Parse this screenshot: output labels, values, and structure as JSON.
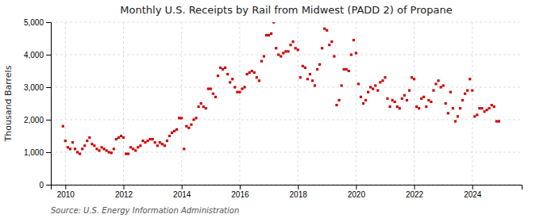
{
  "chart_data": {
    "type": "scatter",
    "title": "Monthly U.S. Receipts by Rail from Midwest (PADD 2) of Propane",
    "ylabel": "Thousand Barrels",
    "source": "Source: U.S. Energy Information Administration",
    "color": "#cc0000",
    "marker": "square",
    "grid": true,
    "xlim": [
      2009.5,
      2025.7
    ],
    "xticks": [
      2010,
      2012,
      2014,
      2016,
      2018,
      2020,
      2022,
      2024
    ],
    "ylim": [
      0,
      5000
    ],
    "yticks": [
      0,
      {
        "value": 1000,
        "label": "1,000"
      },
      {
        "value": 2000,
        "label": "2,000"
      },
      {
        "value": 3000,
        "label": "3,000"
      },
      {
        "value": 4000,
        "label": "4,000"
      },
      {
        "value": 5000,
        "label": "5,000"
      }
    ],
    "x": [
      2009.917,
      2010.0,
      2010.083,
      2010.167,
      2010.25,
      2010.333,
      2010.417,
      2010.5,
      2010.583,
      2010.667,
      2010.75,
      2010.833,
      2010.917,
      2011.0,
      2011.083,
      2011.167,
      2011.25,
      2011.333,
      2011.417,
      2011.5,
      2011.583,
      2011.667,
      2011.75,
      2011.833,
      2011.917,
      2012.0,
      2012.083,
      2012.167,
      2012.25,
      2012.333,
      2012.417,
      2012.5,
      2012.583,
      2012.667,
      2012.75,
      2012.833,
      2012.917,
      2013.0,
      2013.083,
      2013.167,
      2013.25,
      2013.333,
      2013.417,
      2013.5,
      2013.583,
      2013.667,
      2013.75,
      2013.833,
      2013.917,
      2014.0,
      2014.083,
      2014.167,
      2014.25,
      2014.333,
      2014.417,
      2014.5,
      2014.583,
      2014.667,
      2014.75,
      2014.833,
      2014.917,
      2015.0,
      2015.083,
      2015.167,
      2015.25,
      2015.333,
      2015.417,
      2015.5,
      2015.583,
      2015.667,
      2015.75,
      2015.833,
      2015.917,
      2016.0,
      2016.083,
      2016.167,
      2016.25,
      2016.333,
      2016.417,
      2016.5,
      2016.583,
      2016.667,
      2016.75,
      2016.833,
      2016.917,
      2017.0,
      2017.083,
      2017.167,
      2017.25,
      2017.333,
      2017.417,
      2017.5,
      2017.583,
      2017.667,
      2017.75,
      2017.833,
      2017.917,
      2018.0,
      2018.083,
      2018.167,
      2018.25,
      2018.333,
      2018.417,
      2018.5,
      2018.583,
      2018.667,
      2018.75,
      2018.833,
      2018.917,
      2019.0,
      2019.083,
      2019.167,
      2019.25,
      2019.333,
      2019.417,
      2019.5,
      2019.583,
      2019.667,
      2019.75,
      2019.833,
      2019.917,
      2020.0,
      2020.083,
      2020.167,
      2020.25,
      2020.333,
      2020.417,
      2020.5,
      2020.583,
      2020.667,
      2020.75,
      2020.833,
      2020.917,
      2021.0,
      2021.083,
      2021.167,
      2021.25,
      2021.333,
      2021.417,
      2021.5,
      2021.583,
      2021.667,
      2021.75,
      2021.833,
      2021.917,
      2022.0,
      2022.083,
      2022.167,
      2022.25,
      2022.333,
      2022.417,
      2022.5,
      2022.583,
      2022.667,
      2022.75,
      2022.833,
      2022.917,
      2023.0,
      2023.083,
      2023.167,
      2023.25,
      2023.333,
      2023.417,
      2023.5,
      2023.583,
      2023.667,
      2023.75,
      2023.833,
      2023.917,
      2024.0,
      2024.083,
      2024.167,
      2024.25,
      2024.333,
      2024.417,
      2024.5,
      2024.583,
      2024.667,
      2024.75,
      2024.833,
      2024.917
    ],
    "values": [
      1800,
      1350,
      1150,
      1100,
      1300,
      1100,
      1000,
      950,
      1100,
      1200,
      1350,
      1450,
      1250,
      1200,
      1100,
      1050,
      1150,
      1100,
      1050,
      1000,
      980,
      1100,
      1400,
      1450,
      1500,
      1450,
      950,
      950,
      1150,
      1100,
      1050,
      1150,
      1200,
      1350,
      1300,
      1350,
      1400,
      1400,
      1300,
      1200,
      1300,
      1250,
      1200,
      1350,
      1500,
      1600,
      1650,
      1700,
      2050,
      2050,
      1100,
      1800,
      1750,
      1850,
      2000,
      2050,
      2400,
      2500,
      2400,
      2350,
      2950,
      2950,
      2800,
      2700,
      3350,
      3600,
      3550,
      3600,
      3400,
      3150,
      3250,
      3000,
      2850,
      2850,
      2950,
      3000,
      3400,
      3450,
      3500,
      3450,
      3300,
      3200,
      3800,
      3950,
      4600,
      4600,
      4650,
      5000,
      4200,
      4000,
      3950,
      4050,
      4100,
      4100,
      4300,
      4400,
      4200,
      4150,
      3300,
      3650,
      3600,
      3250,
      3400,
      3200,
      3050,
      3550,
      3700,
      4200,
      4800,
      4750,
      4300,
      4400,
      3950,
      2450,
      2600,
      3050,
      3550,
      3550,
      3500,
      4000,
      4450,
      4050,
      3100,
      2700,
      2500,
      2600,
      2850,
      3000,
      2950,
      3050,
      2900,
      3150,
      3200,
      3300,
      2650,
      2400,
      2600,
      2550,
      2400,
      2350,
      2650,
      2750,
      2600,
      2900,
      3300,
      3250,
      2400,
      2350,
      2650,
      2700,
      2400,
      2600,
      2550,
      2900,
      3100,
      3200,
      3000,
      3050,
      2500,
      2200,
      2850,
      2350,
      1950,
      2100,
      2350,
      2600,
      2800,
      2900,
      3250,
      2900,
      2100,
      2150,
      2350,
      2350,
      2250,
      2300,
      2350,
      2450,
      2400,
      1950,
      1950
    ]
  }
}
